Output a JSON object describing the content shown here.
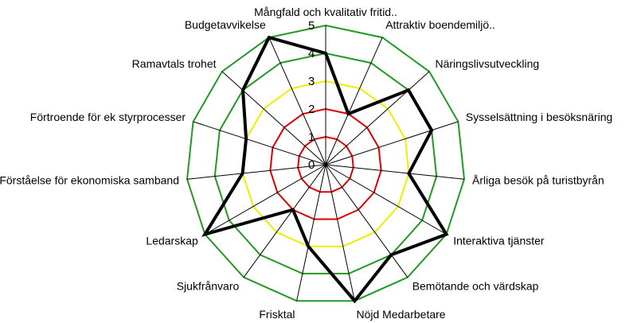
{
  "chart_data": {
    "type": "radar",
    "title": "",
    "categories": [
      "Mångfald och kvalitativ fritid..",
      "Attraktiv boendemiljö..",
      "Näringslivsutveckling",
      "Sysselsättning i besöksnäring",
      "Årliga besök på turistbyrån",
      "Interaktiva tjänster",
      "Bemötande och värdskap",
      "Nöjd Medarbetare",
      "Frisktal",
      "Sjukfrånvaro",
      "Ledarskap",
      "Förståelse för ekonomiska samband",
      "Förtroende för ek styrprocesser",
      "Ramavtals trohet",
      "Budgetavvikelse"
    ],
    "series": [
      {
        "values": [
          4,
          2,
          4,
          4,
          3,
          5,
          4,
          5,
          3,
          2,
          5,
          3,
          3,
          4,
          5
        ],
        "color": "#000000"
      }
    ],
    "rlim": [
      0,
      5
    ],
    "ticks": [
      0,
      1,
      2,
      3,
      4,
      5
    ],
    "ring_colors": [
      "#dd0000",
      "#dd0000",
      "#dd0000",
      "#eeee00",
      "#229922",
      "#229922"
    ],
    "spoke_color": "#000000",
    "grid": true,
    "legend": "none"
  }
}
